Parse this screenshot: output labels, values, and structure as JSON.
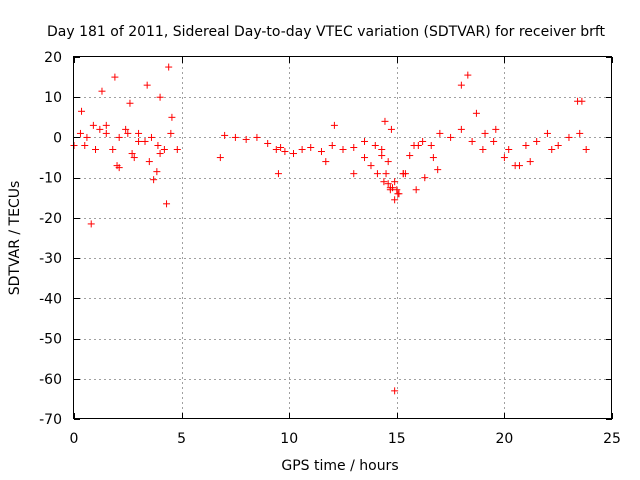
{
  "chart_data": {
    "type": "scatter",
    "title": "Day 181 of 2011, Sidereal Day-to-day VTEC variation (SDTVAR) for receiver brft",
    "xlabel": "GPS time / hours",
    "ylabel": "SDTVAR / TECUs",
    "xlim": [
      0,
      25
    ],
    "ylim": [
      -70,
      20
    ],
    "xticks": [
      0,
      5,
      10,
      15,
      20,
      25
    ],
    "xtick_labels": [
      "0",
      "5",
      "10",
      "15",
      "20",
      "25"
    ],
    "yticks": [
      20,
      10,
      0,
      -10,
      -20,
      -30,
      -40,
      -50,
      -60,
      -70
    ],
    "ytick_labels": [
      "20",
      "10",
      "0",
      "-10",
      "-20",
      "-30",
      "-40",
      "-50",
      "-60",
      "-70"
    ],
    "grid": true,
    "marker": "+",
    "color": "#ff0000",
    "series": [
      {
        "name": "SDTVAR",
        "x": [
          0.0,
          0.3,
          0.6,
          0.9,
          1.2,
          1.5,
          1.8,
          2.1,
          2.4,
          2.7,
          3.0,
          3.3,
          3.6,
          3.9,
          4.2,
          4.5,
          4.8,
          0.8,
          1.3,
          1.9,
          2.6,
          3.4,
          4.0,
          4.4,
          4.55,
          3.7,
          3.85,
          2.8,
          2.1,
          0.35,
          6.8,
          7.0,
          7.5,
          8.0,
          8.5,
          9.0,
          9.4,
          9.6,
          9.8,
          10.2,
          10.6,
          11.0,
          11.5,
          12.0,
          12.5,
          13.0,
          13.5,
          14.0,
          14.3,
          14.6,
          14.9,
          15.1,
          15.4,
          15.8,
          16.2,
          16.6,
          17.0,
          17.5,
          18.0,
          18.5,
          19.0,
          19.5,
          20.0,
          20.5,
          21.0,
          21.5,
          22.0,
          22.5,
          23.0,
          23.5,
          23.8,
          14.3,
          14.5,
          14.7,
          14.9,
          15.05,
          15.3,
          15.6,
          16.0,
          13.5,
          13.8,
          14.1,
          14.4,
          14.7,
          15.0,
          15.3,
          14.6,
          14.8,
          15.9,
          16.3,
          16.7,
          18.3,
          18.0,
          18.7,
          19.1,
          19.6,
          20.2,
          20.7,
          21.2,
          22.2,
          23.4,
          23.6,
          16.9,
          12.1,
          9.5,
          11.7,
          13.0,
          14.45,
          14.75,
          14.9,
          1.0,
          2.0,
          3.0,
          4.0,
          0.5,
          1.5,
          2.5,
          3.5,
          4.3
        ],
        "y": [
          -2,
          1,
          0,
          3,
          2,
          1,
          -3,
          0,
          2,
          -4,
          1,
          -1,
          0,
          -2,
          -3,
          1,
          -3,
          -21.5,
          11.5,
          15,
          8.5,
          13,
          10,
          17.5,
          5,
          -10.5,
          -8.5,
          -5,
          -7.5,
          6.5,
          -5,
          0.5,
          0,
          -0.5,
          0,
          -1.5,
          -3,
          -2.5,
          -3.5,
          -4,
          -3,
          -2.5,
          -3.5,
          -2,
          -3,
          -2.5,
          -1,
          -2,
          -3,
          -6,
          -11,
          -14,
          -9,
          -2,
          -1,
          -2,
          1,
          0,
          2,
          -1,
          -3,
          -1,
          -5,
          -7,
          -2,
          -1,
          1,
          -2,
          0,
          1,
          -3,
          -4.5,
          -9,
          -13,
          -15.5,
          -14,
          -9,
          -4.5,
          -2,
          -5,
          -7,
          -9,
          -11,
          -12.5,
          -13,
          -9,
          -11.5,
          -12.5,
          -13,
          -10,
          -5,
          15.5,
          13,
          6,
          1,
          2,
          -3,
          -7,
          -6,
          -3,
          9,
          9,
          -8,
          3,
          -9,
          -6,
          -9,
          4,
          2,
          -63,
          -3,
          -7,
          -1,
          -4,
          -2,
          3,
          1,
          -6,
          -16.5
        ]
      }
    ]
  }
}
